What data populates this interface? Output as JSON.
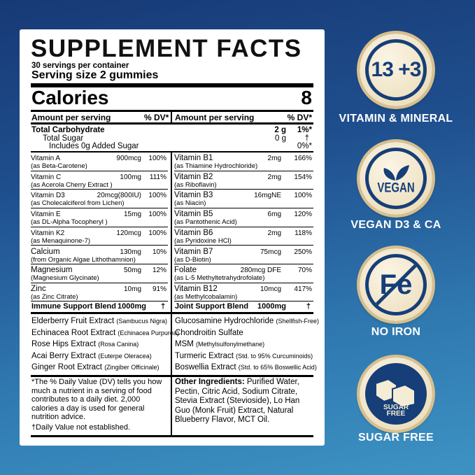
{
  "label": {
    "title": "SUPPLEMENT FACTS",
    "servings": "30 servings per container",
    "serving_size": "Serving size  2 gummies",
    "calories_label": "Calories",
    "calories_value": "8",
    "amount_header": "Amount per serving",
    "dv_header": "% DV*",
    "carb": {
      "name": "Total Carbohydrate",
      "amount": "2 g",
      "dv": "1%*",
      "sugar": "Total Sugar",
      "sugar_amount": "0 g",
      "sugar_dv": "†",
      "added": "Includes 0g Added Sugar",
      "added_dv": "0%*"
    },
    "left_rows": [
      {
        "name": "Vitamin A",
        "sub": "(as Beta-Carotene)",
        "amount": "900mcg",
        "dv": "100%"
      },
      {
        "name": "Vitamin C",
        "sub": "(as Acerola Cherry Extract )",
        "amount": "100mg",
        "dv": "111%"
      },
      {
        "name": "Vitamin D3",
        "sub": "(as Cholecalciferol from Lichen)",
        "amount": "20mcg(800IU)",
        "dv": "100%"
      },
      {
        "name": "Vitamin E",
        "sub": "(as DL-Alpha Tocopheryl )",
        "amount": "15mg",
        "dv": "100%"
      },
      {
        "name": "Vitamin K2",
        "sub": "(as Menaquinone-7)",
        "amount": "120mcg",
        "dv": "100%"
      },
      {
        "name": "Calcium",
        "sub": "(from Organic Algae Lithothamnion)",
        "amount": "130mg",
        "dv": "10%",
        "big": true
      },
      {
        "name": "Magnesium",
        "sub": "(Magnesium Glycinate)",
        "amount": "50mg",
        "dv": "12%",
        "big": true
      },
      {
        "name": "Zinc",
        "sub": "(as Zinc Citrate)",
        "amount": "10mg",
        "dv": "91%",
        "big": true
      }
    ],
    "right_rows": [
      {
        "name": "Vitamin B1",
        "sub": "(as Thiamine Hydrochloride)",
        "amount": "2mg",
        "dv": "166%"
      },
      {
        "name": "Vitamin B2",
        "sub": "(as Riboflavin)",
        "amount": "2mg",
        "dv": "154%"
      },
      {
        "name": "Vitamin B3",
        "sub": "(as Niacin)",
        "amount": "16mgNE",
        "dv": "100%"
      },
      {
        "name": "Vitamin B5",
        "sub": "(as Pantothenic Acid)",
        "amount": "6mg",
        "dv": "120%"
      },
      {
        "name": "Vitamin B6",
        "sub": "(as Pyridoxine HCl)",
        "amount": "2mg",
        "dv": "118%"
      },
      {
        "name": "Vitamin B7",
        "sub": "(as D-Biotin)",
        "amount": "75mcg",
        "dv": "250%"
      },
      {
        "name": "Folate",
        "sub": "(as L-5 Methyltetrahydrofolate)",
        "amount": "280mcg DFE",
        "dv": "70%"
      },
      {
        "name": "Vitamin B12",
        "sub": "(as Methylcobalamin)",
        "amount": "10mcg",
        "dv": "417%"
      }
    ],
    "immune_blend": {
      "name": "Immune Support Blend",
      "amount": "1000mg",
      "dv": "†",
      "items": [
        {
          "name": "Elderberry Fruit Extract",
          "sub": "(Sambucus Nigra)"
        },
        {
          "name": "Echinacea Root Extract",
          "sub": "(Echinacea Purpurea)"
        },
        {
          "name": "Rose Hips Extract",
          "sub": "(Rosa Canina)"
        },
        {
          "name": "Acai Berry Extract",
          "sub": "(Euterpe Oleracea)"
        },
        {
          "name": "Ginger Root Extract",
          "sub": "(Zingiber Officinale)"
        }
      ]
    },
    "joint_blend": {
      "name": "Joint Support Blend",
      "amount": "1000mg",
      "dv": "†",
      "items": [
        {
          "name": "Glucosamine Hydrochloride",
          "sub": "(Shellfish-Free)"
        },
        {
          "name": "Chondroitin Sulfate",
          "sub": ""
        },
        {
          "name": "MSM",
          "sub": "(Methylsulfonylmethane)"
        },
        {
          "name": "Turmeric Extract",
          "sub": "(Std. to 95% Curcuminoids)"
        },
        {
          "name": "Boswellia Extract",
          "sub": "(Std. to 65% Boswellic Acid)"
        }
      ]
    },
    "footnote": "*The % Daily Value (DV) tells you how much a nutrient in a serving of food contributes to a daily diet. 2,000 calories a day is used for general nutrition advice.",
    "footnote2": "†Daily Value not established.",
    "other_label": "Other Ingredients:",
    "other_text": " Purified Water, Pectin, Citric Acid, Sodium Citrate, Stevia Extract (Stevioside), Lo Han Guo (Monk Fruit) Extract, Natural Blueberry Flavor, MCT Oil."
  },
  "badges": [
    {
      "icon": "number-13-plus-3-icon",
      "text": "13 +3",
      "label": "VITAMIN & MINERAL"
    },
    {
      "icon": "vegan-leaf-icon",
      "text": "VEGAN",
      "label": "VEGAN D3 & CA"
    },
    {
      "icon": "no-iron-icon",
      "text": "Fe",
      "label": "NO IRON"
    },
    {
      "icon": "sugar-free-icon",
      "text": "SUGAR FREE",
      "label": "SUGAR FREE"
    }
  ],
  "colors": {
    "badge_navy": "#163e78",
    "badge_gold": "#d9bf8c",
    "background_top": "#173a76",
    "background_bottom": "#3d93c4"
  }
}
